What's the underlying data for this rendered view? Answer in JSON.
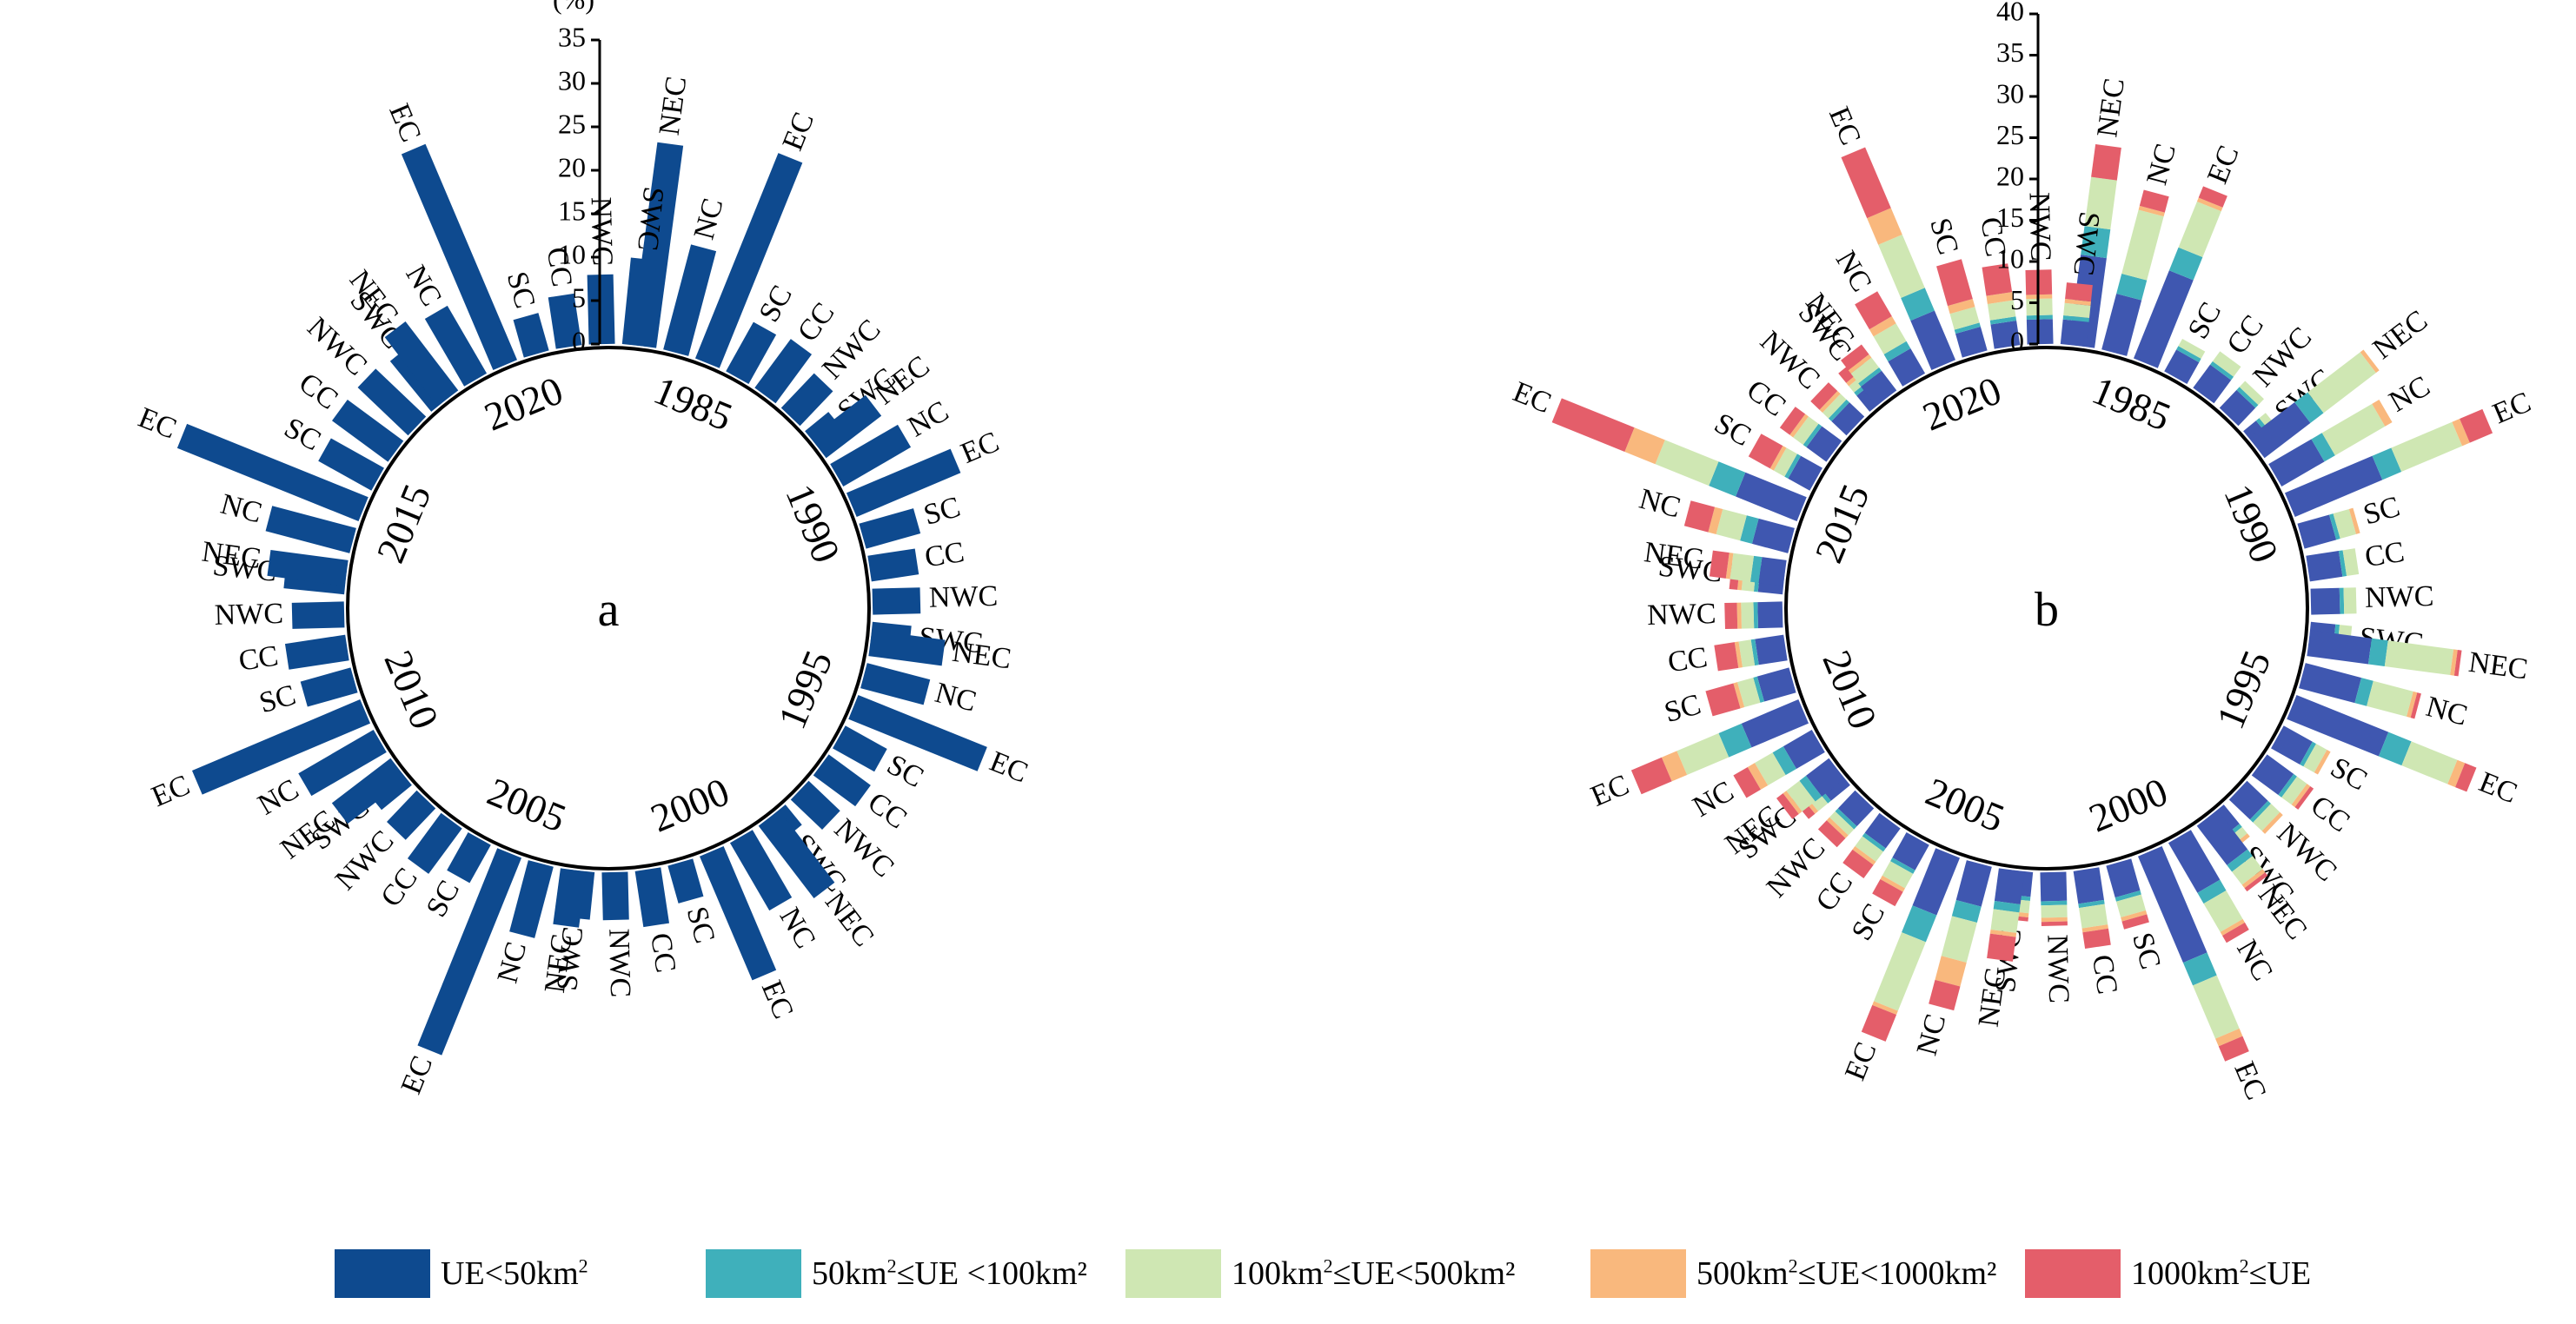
{
  "chart_data": [
    {
      "id": "a",
      "type": "radial_bar",
      "panel_label": "a",
      "unit": "(%)",
      "rmax": 35,
      "ticks": [
        "0",
        "5",
        "10",
        "15",
        "20",
        "25",
        "30",
        "35"
      ],
      "years": [
        "1985",
        "1990",
        "1995",
        "2000",
        "2005",
        "2010",
        "2015",
        "2020"
      ],
      "regions": [
        "NEC",
        "NC",
        "EC",
        "SC",
        "CC",
        "NWC",
        "SWC"
      ],
      "series_names": [
        "UE<50km2"
      ],
      "values": [
        [
          [
            23.5
          ],
          [
            12.5
          ],
          [
            25.5
          ],
          [
            6.5
          ],
          [
            7
          ],
          [
            5.5
          ],
          [
            3.5
          ]
        ],
        [
          [
            8
          ],
          [
            9
          ],
          [
            13
          ],
          [
            6.5
          ],
          [
            5.5
          ],
          [
            5.5
          ],
          [
            4.5
          ]
        ],
        [
          [
            8.5
          ],
          [
            7.5
          ],
          [
            16
          ],
          [
            5.5
          ],
          [
            6
          ],
          [
            5
          ],
          [
            3
          ]
        ],
        [
          [
            10.5
          ],
          [
            9
          ],
          [
            15.5
          ],
          [
            4.5
          ],
          [
            6.5
          ],
          [
            5.5
          ],
          [
            5.5
          ]
        ],
        [
          [
            6.5
          ],
          [
            8.5
          ],
          [
            24.5
          ],
          [
            5
          ],
          [
            6.5
          ],
          [
            5
          ],
          [
            4.5
          ]
        ],
        [
          [
            8.5
          ],
          [
            10
          ],
          [
            21
          ],
          [
            6
          ],
          [
            7
          ],
          [
            6
          ],
          [
            7
          ]
        ],
        [
          [
            9
          ],
          [
            10
          ],
          [
            22.5
          ],
          [
            7
          ],
          [
            8
          ],
          [
            8
          ],
          [
            7.5
          ]
        ],
        [
          [
            10
          ],
          [
            9
          ],
          [
            27
          ],
          [
            4.5
          ],
          [
            6
          ],
          [
            8
          ],
          [
            10
          ]
        ]
      ]
    },
    {
      "id": "b",
      "type": "radial_stacked_bar",
      "panel_label": "b",
      "unit": "(%)",
      "rmax": 40,
      "ticks": [
        "0",
        "5",
        "10",
        "15",
        "20",
        "25",
        "30",
        "35",
        "40"
      ],
      "years": [
        "1985",
        "1990",
        "1995",
        "2000",
        "2005",
        "2010",
        "2015",
        "2020"
      ],
      "regions": [
        "NEC",
        "NC",
        "EC",
        "SC",
        "CC",
        "NWC",
        "SWC"
      ],
      "series_names": [
        "UE<50km2",
        "50km2≤UE <100km2",
        "100km2≤UE<500km2",
        "500km2≤UE<1000km2",
        "1000km2≤UE"
      ],
      "values": [
        [
          [
            11,
            3.5,
            6,
            0,
            4
          ],
          [
            7,
            2.5,
            8,
            0.5,
            2
          ],
          [
            11.5,
            3,
            6,
            0.5,
            1.5
          ],
          [
            3,
            0.5,
            1,
            0,
            0
          ],
          [
            3.5,
            0.5,
            1.5,
            0,
            0
          ],
          [
            3,
            0.5,
            1,
            0,
            0
          ],
          [
            2,
            0.5,
            1,
            0,
            0
          ]
        ],
        [
          [
            7,
            2,
            8,
            0.5,
            0
          ],
          [
            6,
            1.5,
            7,
            1,
            0
          ],
          [
            11.5,
            2.5,
            8,
            1,
            3
          ],
          [
            4,
            0.5,
            2,
            0.5,
            0
          ],
          [
            4,
            0.5,
            1.5,
            0,
            0
          ],
          [
            3.5,
            0.5,
            1.5,
            0,
            0
          ],
          [
            3,
            0.5,
            1.5,
            0,
            0
          ]
        ],
        [
          [
            7.5,
            2,
            8,
            0.5,
            0.5
          ],
          [
            7,
            1.5,
            5,
            0.5,
            0.5
          ],
          [
            12,
            3,
            6,
            1,
            1.5
          ],
          [
            4,
            0.5,
            1.5,
            0.5,
            0
          ],
          [
            4,
            0.5,
            1.5,
            0.5,
            0.5
          ],
          [
            3.5,
            0.5,
            1.5,
            0.5,
            0
          ],
          [
            3,
            0.5,
            1,
            0.5,
            0
          ]
        ],
        [
          [
            6,
            1,
            2,
            0.5,
            0.5
          ],
          [
            7,
            1.5,
            4,
            0.5,
            1
          ],
          [
            14,
            3,
            7,
            1,
            2
          ],
          [
            4,
            0.5,
            2,
            0.5,
            1
          ],
          [
            4,
            0.5,
            2.5,
            0.5,
            2
          ],
          [
            3.5,
            0.5,
            1.5,
            0.5,
            0.5
          ],
          [
            3,
            0.5,
            1.5,
            0.5,
            0.5
          ]
        ],
        [
          [
            4,
            1,
            2.5,
            0.5,
            3
          ],
          [
            5,
            2,
            5,
            3,
            3
          ],
          [
            7.5,
            3.5,
            9,
            0.5,
            3.5
          ],
          [
            3.5,
            0.5,
            2,
            0.5,
            2
          ],
          [
            3,
            0.5,
            1.5,
            0.5,
            2
          ],
          [
            3,
            0.5,
            1,
            0.5,
            1.5
          ],
          [
            3,
            0.5,
            1.5,
            0.5,
            1
          ]
        ],
        [
          [
            3.5,
            1,
            2,
            0.5,
            1
          ],
          [
            4,
            1.5,
            2.5,
            1,
            2
          ],
          [
            7.5,
            3,
            5.5,
            2,
            4
          ],
          [
            4,
            0.5,
            2,
            0.5,
            3.5
          ],
          [
            3.5,
            0.5,
            1.5,
            0.5,
            2.5
          ],
          [
            3,
            0.5,
            1.5,
            0.5,
            1.5
          ],
          [
            3,
            0.5,
            1.5,
            0.5,
            1
          ]
        ],
        [
          [
            3,
            1,
            2.5,
            0.5,
            2
          ],
          [
            4.5,
            1.5,
            3,
            1,
            3
          ],
          [
            8,
            3.5,
            7,
            4,
            9.5
          ],
          [
            3,
            0.5,
            1.5,
            0.5,
            3
          ],
          [
            3,
            0.5,
            1.5,
            0.5,
            1.5
          ],
          [
            2.5,
            0.5,
            1,
            0.5,
            1.5
          ],
          [
            2.5,
            0.5,
            1,
            0.5,
            1.5
          ]
        ],
        [
          [
            3,
            0.5,
            1.5,
            0.5,
            1.5
          ],
          [
            3.5,
            1,
            2.5,
            1,
            3.5
          ],
          [
            6.5,
            3,
            7,
            3.5,
            8
          ],
          [
            3,
            0.5,
            2,
            1,
            5
          ],
          [
            3,
            0.5,
            2,
            1,
            3.5
          ],
          [
            3,
            0.5,
            2,
            0.5,
            3
          ],
          [
            3,
            0.5,
            1.5,
            0.5,
            2
          ]
        ]
      ]
    }
  ],
  "legend": [
    {
      "label": "UE<50km",
      "sup": "2",
      "tail": "",
      "color": "#0e4a8f"
    },
    {
      "label": "50km",
      "sup": "2",
      "tail": "≤UE <100km²",
      "color": "#3fb0bb"
    },
    {
      "label": "100km",
      "sup": "2",
      "tail": "≤UE<500km²",
      "color": "#cfe7b3"
    },
    {
      "label": "500km",
      "sup": "2",
      "tail": "≤UE<1000km²",
      "color": "#f9b87d"
    },
    {
      "label": "1000km",
      "sup": "2",
      "tail": "≤UE",
      "color": "#e45e6a"
    }
  ],
  "colors": {
    "panel_a_bar": "#0e4a8f",
    "panel_b_series": [
      "#3f57b0",
      "#3fb0bb",
      "#cfe7b3",
      "#f9b87d",
      "#e45e6a"
    ]
  }
}
